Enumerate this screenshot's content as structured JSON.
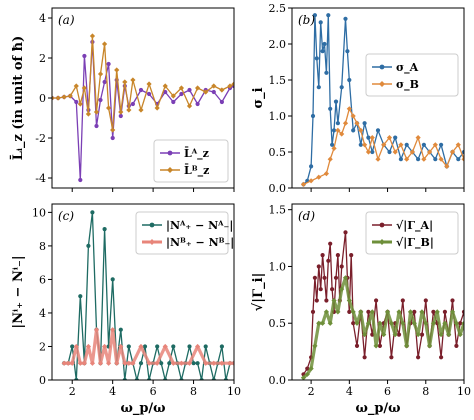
{
  "chart_data": [
    {
      "id": "a",
      "panel_label": "(a)",
      "type": "line",
      "ylabel": "L̄ᵢ_z (in unit of ħ)",
      "xlim": [
        1,
        10
      ],
      "ylim": [
        -4.5,
        4.5
      ],
      "xticks": [
        2,
        4,
        6,
        8,
        10
      ],
      "yticks": [
        -4,
        -2,
        0,
        2,
        4
      ],
      "legend_loc": "lower right",
      "series": [
        {
          "name": "L̄ᴬ_z",
          "color": "#7b3fb5",
          "x": [
            1.0,
            1.3,
            1.6,
            1.9,
            2.2,
            2.4,
            2.6,
            2.8,
            3.0,
            3.2,
            3.4,
            3.6,
            3.8,
            4.0,
            4.2,
            4.4,
            4.6,
            4.8,
            5.0,
            5.4,
            5.8,
            6.2,
            6.6,
            7.0,
            7.4,
            7.8,
            8.2,
            8.6,
            9.0,
            9.4,
            9.8,
            10.0
          ],
          "y": [
            0.0,
            0.0,
            0.05,
            0.1,
            -0.2,
            -4.1,
            2.1,
            -0.6,
            2.8,
            -1.4,
            -0.1,
            0.8,
            1.7,
            -2.0,
            0.9,
            -0.9,
            0.6,
            -0.4,
            -0.3,
            0.4,
            0.2,
            -0.3,
            0.3,
            -0.2,
            0.2,
            0.4,
            -0.3,
            0.4,
            0.3,
            -0.2,
            0.5,
            0.6
          ]
        },
        {
          "name": "L̄ᴮ_z",
          "color": "#c8862a",
          "x": [
            1.0,
            1.3,
            1.6,
            1.9,
            2.2,
            2.4,
            2.6,
            2.8,
            3.0,
            3.2,
            3.4,
            3.6,
            3.8,
            4.0,
            4.2,
            4.4,
            4.6,
            4.8,
            5.0,
            5.4,
            5.8,
            6.2,
            6.6,
            7.0,
            7.4,
            7.8,
            8.2,
            8.6,
            9.0,
            9.4,
            9.8,
            10.0
          ],
          "y": [
            0.0,
            0.0,
            0.05,
            0.1,
            0.6,
            -0.3,
            0.5,
            -0.8,
            3.1,
            -0.7,
            1.2,
            2.7,
            -0.5,
            -1.6,
            1.4,
            -0.7,
            0.8,
            -0.6,
            0.9,
            -0.6,
            0.7,
            -0.5,
            0.6,
            0.1,
            0.5,
            -0.4,
            0.5,
            0.3,
            0.6,
            0.4,
            0.6,
            0.7
          ]
        }
      ]
    },
    {
      "id": "b",
      "panel_label": "(b)",
      "type": "line",
      "ylabel": "σ_i",
      "xlim": [
        1,
        10
      ],
      "ylim": [
        0,
        2.5
      ],
      "xticks": [
        2,
        4,
        6,
        8,
        10
      ],
      "yticks": [
        0.0,
        0.5,
        1.0,
        1.5,
        2.0,
        2.5
      ],
      "legend_loc": "upper right",
      "series": [
        {
          "name": "σ_A",
          "color": "#2e6da4",
          "x": [
            1.6,
            1.8,
            2.0,
            2.1,
            2.2,
            2.3,
            2.4,
            2.5,
            2.6,
            2.7,
            2.8,
            2.9,
            3.0,
            3.1,
            3.2,
            3.3,
            3.4,
            3.6,
            3.8,
            3.9,
            4.0,
            4.2,
            4.4,
            4.6,
            4.8,
            5.0,
            5.2,
            5.5,
            5.8,
            6.1,
            6.4,
            6.7,
            7.0,
            7.3,
            7.6,
            7.9,
            8.2,
            8.5,
            8.8,
            9.1,
            9.4,
            9.7,
            10.0
          ],
          "y": [
            0.05,
            0.1,
            0.3,
            1.0,
            2.4,
            1.8,
            1.4,
            2.3,
            1.9,
            2.0,
            1.6,
            2.4,
            1.1,
            0.6,
            0.8,
            1.2,
            0.9,
            1.4,
            2.35,
            1.9,
            1.5,
            0.8,
            0.9,
            0.6,
            0.9,
            0.7,
            0.5,
            0.8,
            0.6,
            0.5,
            0.7,
            0.4,
            0.6,
            0.5,
            0.4,
            0.6,
            0.5,
            0.4,
            0.6,
            0.3,
            0.5,
            0.4,
            0.5
          ]
        },
        {
          "name": "σ_B",
          "color": "#e08a3c",
          "x": [
            1.6,
            2.0,
            2.4,
            2.8,
            3.0,
            3.2,
            3.4,
            3.6,
            3.8,
            4.0,
            4.2,
            4.4,
            4.6,
            4.8,
            5.0,
            5.2,
            5.5,
            5.8,
            6.1,
            6.4,
            6.7,
            7.0,
            7.3,
            7.6,
            7.9,
            8.2,
            8.5,
            8.8,
            9.1,
            9.4,
            9.7,
            10.0
          ],
          "y": [
            0.05,
            0.1,
            0.15,
            0.2,
            0.4,
            0.55,
            0.8,
            0.75,
            0.9,
            1.1,
            1.0,
            0.9,
            0.8,
            0.6,
            0.5,
            0.7,
            0.4,
            0.6,
            0.7,
            0.5,
            0.6,
            0.4,
            0.5,
            0.7,
            0.4,
            0.5,
            0.6,
            0.4,
            0.3,
            0.5,
            0.6,
            0.4
          ]
        }
      ]
    },
    {
      "id": "c",
      "panel_label": "(c)",
      "type": "line",
      "ylabel": "|Nⁱ₊ − Nⁱ₋|",
      "xlabel": "ω_p/ω",
      "xlim": [
        1,
        10
      ],
      "ylim": [
        0,
        10.5
      ],
      "xticks": [
        2,
        4,
        6,
        8,
        10
      ],
      "yticks": [
        0,
        2,
        4,
        6,
        8,
        10
      ],
      "legend_loc": "upper right",
      "series": [
        {
          "name": "|Nᴬ₊ − Nᴬ₋|",
          "color": "#1e6b63",
          "x": [
            1.6,
            1.8,
            2.0,
            2.2,
            2.4,
            2.6,
            2.8,
            3.0,
            3.2,
            3.4,
            3.6,
            3.8,
            4.0,
            4.2,
            4.4,
            4.6,
            4.8,
            5.0,
            5.2,
            5.4,
            5.6,
            5.8,
            6.0,
            6.2,
            6.4,
            6.6,
            6.8,
            7.0,
            7.2,
            7.4,
            7.6,
            7.8,
            8.0,
            8.2,
            8.4,
            8.6,
            8.8,
            9.0,
            9.2,
            9.4,
            9.6,
            9.8,
            10.0
          ],
          "y": [
            1,
            1,
            2,
            0,
            5,
            1,
            8,
            10,
            3,
            1,
            9,
            2,
            6,
            1,
            3,
            0,
            2,
            1,
            0,
            1,
            2,
            0,
            1,
            2,
            1,
            0,
            1,
            2,
            1,
            0,
            1,
            2,
            1,
            1,
            0,
            2,
            1,
            0,
            1,
            2,
            0,
            1,
            1
          ]
        },
        {
          "name": "|Nᴮ₊ − Nᴮ₋|",
          "color": "#e8857a",
          "x": [
            1.6,
            1.8,
            2.0,
            2.2,
            2.4,
            2.6,
            2.8,
            3.0,
            3.2,
            3.4,
            3.6,
            3.8,
            4.0,
            4.2,
            4.4,
            4.6,
            4.8,
            5.0,
            5.4,
            5.8,
            6.2,
            6.6,
            7.0,
            7.4,
            7.8,
            8.2,
            8.6,
            9.0,
            9.4,
            9.8,
            10.0
          ],
          "y": [
            1,
            1,
            1,
            2,
            1,
            1,
            2,
            1,
            3,
            1,
            2,
            1,
            3,
            1,
            2,
            1,
            1,
            1,
            2,
            1,
            1,
            2,
            1,
            1,
            1,
            2,
            1,
            1,
            1,
            1,
            1
          ]
        }
      ]
    },
    {
      "id": "d",
      "panel_label": "(d)",
      "type": "line",
      "ylabel": "√|Γ_i|",
      "xlabel": "ω_p/ω",
      "xlim": [
        1,
        10
      ],
      "ylim": [
        0,
        1.55
      ],
      "xticks": [
        2,
        4,
        6,
        8,
        10
      ],
      "yticks": [
        0.0,
        0.5,
        1.0,
        1.5
      ],
      "legend_loc": "upper right",
      "series": [
        {
          "name": "√|Γ_A|",
          "color": "#7a1f2b",
          "x": [
            1.6,
            1.8,
            2.0,
            2.1,
            2.2,
            2.3,
            2.4,
            2.5,
            2.6,
            2.7,
            2.8,
            2.9,
            3.0,
            3.1,
            3.2,
            3.3,
            3.4,
            3.5,
            3.6,
            3.8,
            3.9,
            4.0,
            4.1,
            4.2,
            4.4,
            4.6,
            4.8,
            5.0,
            5.2,
            5.4,
            5.6,
            5.8,
            6.0,
            6.2,
            6.4,
            6.6,
            6.8,
            7.0,
            7.2,
            7.4,
            7.6,
            7.8,
            8.0,
            8.2,
            8.4,
            8.6,
            8.8,
            9.0,
            9.2,
            9.4,
            9.6,
            9.8,
            10.0
          ],
          "y": [
            0.05,
            0.1,
            0.2,
            0.6,
            0.9,
            0.7,
            1.0,
            0.8,
            1.1,
            0.9,
            0.7,
            1.05,
            1.2,
            0.8,
            0.6,
            0.9,
            1.1,
            0.7,
            1.0,
            1.3,
            0.9,
            0.6,
            1.1,
            0.5,
            0.3,
            0.6,
            0.2,
            0.6,
            0.4,
            0.7,
            0.3,
            0.5,
            0.6,
            0.2,
            0.5,
            0.4,
            0.7,
            0.3,
            0.5,
            0.6,
            0.2,
            0.4,
            0.7,
            0.3,
            0.6,
            0.5,
            0.2,
            0.6,
            0.4,
            0.7,
            0.3,
            0.5,
            0.6
          ]
        },
        {
          "name": "√|Γ_B|",
          "color": "#6e8f3a",
          "x": [
            1.6,
            1.8,
            2.0,
            2.2,
            2.4,
            2.6,
            2.8,
            3.0,
            3.2,
            3.4,
            3.6,
            3.8,
            4.0,
            4.2,
            4.4,
            4.6,
            4.8,
            5.0,
            5.2,
            5.4,
            5.6,
            5.8,
            6.0,
            6.2,
            6.4,
            6.6,
            6.8,
            7.0,
            7.2,
            7.4,
            7.6,
            7.8,
            8.0,
            8.2,
            8.4,
            8.6,
            8.8,
            9.0,
            9.2,
            9.4,
            9.6,
            9.8,
            10.0
          ],
          "y": [
            0.02,
            0.05,
            0.1,
            0.3,
            0.5,
            0.5,
            0.6,
            0.5,
            0.7,
            0.6,
            0.8,
            0.9,
            0.7,
            0.6,
            0.5,
            0.6,
            0.4,
            0.5,
            0.6,
            0.3,
            0.5,
            0.4,
            0.6,
            0.5,
            0.4,
            0.6,
            0.5,
            0.3,
            0.6,
            0.5,
            0.4,
            0.6,
            0.5,
            0.3,
            0.5,
            0.6,
            0.4,
            0.5,
            0.4,
            0.6,
            0.5,
            0.4,
            0.5
          ]
        }
      ]
    }
  ]
}
